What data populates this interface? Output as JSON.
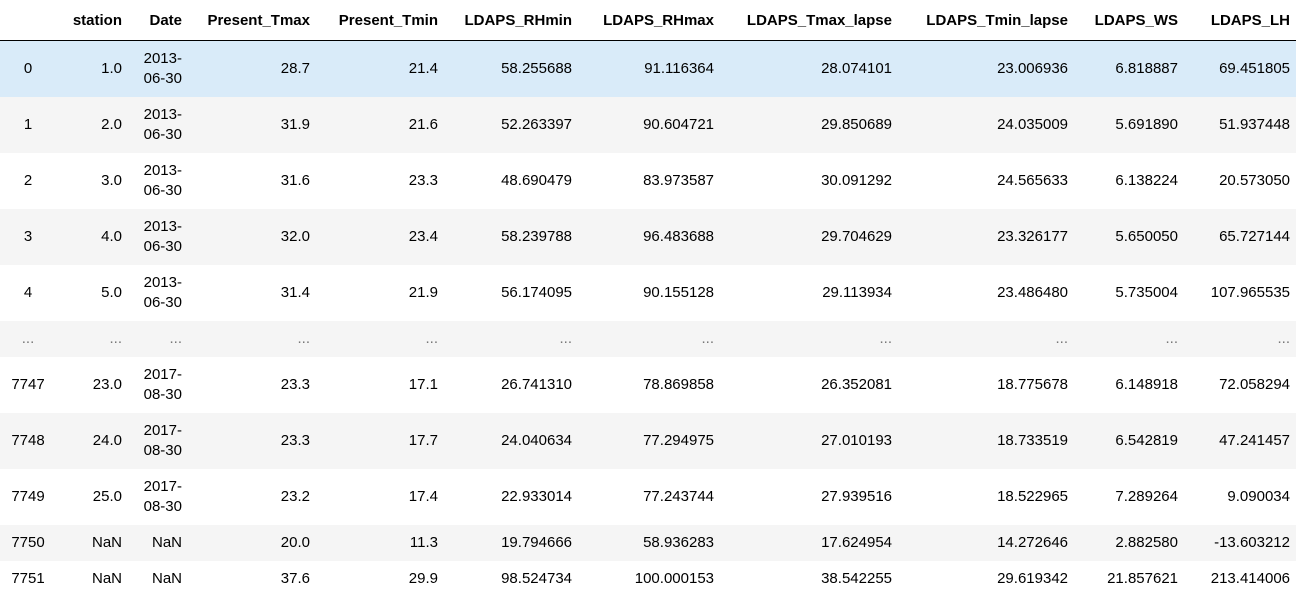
{
  "table": {
    "columns": [
      "station",
      "Date",
      "Present_Tmax",
      "Present_Tmin",
      "LDAPS_RHmin",
      "LDAPS_RHmax",
      "LDAPS_Tmax_lapse",
      "LDAPS_Tmin_lapse",
      "LDAPS_WS",
      "LDAPS_LH"
    ],
    "rows": [
      {
        "index": "0",
        "station": "1.0",
        "date1": "2013-",
        "date2": "06-30",
        "Present_Tmax": "28.7",
        "Present_Tmin": "21.4",
        "LDAPS_RHmin": "58.255688",
        "LDAPS_RHmax": "91.116364",
        "LDAPS_Tmax_lapse": "28.074101",
        "LDAPS_Tmin_lapse": "23.006936",
        "LDAPS_WS": "6.818887",
        "LDAPS_LH": "69.451805"
      },
      {
        "index": "1",
        "station": "2.0",
        "date1": "2013-",
        "date2": "06-30",
        "Present_Tmax": "31.9",
        "Present_Tmin": "21.6",
        "LDAPS_RHmin": "52.263397",
        "LDAPS_RHmax": "90.604721",
        "LDAPS_Tmax_lapse": "29.850689",
        "LDAPS_Tmin_lapse": "24.035009",
        "LDAPS_WS": "5.691890",
        "LDAPS_LH": "51.937448"
      },
      {
        "index": "2",
        "station": "3.0",
        "date1": "2013-",
        "date2": "06-30",
        "Present_Tmax": "31.6",
        "Present_Tmin": "23.3",
        "LDAPS_RHmin": "48.690479",
        "LDAPS_RHmax": "83.973587",
        "LDAPS_Tmax_lapse": "30.091292",
        "LDAPS_Tmin_lapse": "24.565633",
        "LDAPS_WS": "6.138224",
        "LDAPS_LH": "20.573050"
      },
      {
        "index": "3",
        "station": "4.0",
        "date1": "2013-",
        "date2": "06-30",
        "Present_Tmax": "32.0",
        "Present_Tmin": "23.4",
        "LDAPS_RHmin": "58.239788",
        "LDAPS_RHmax": "96.483688",
        "LDAPS_Tmax_lapse": "29.704629",
        "LDAPS_Tmin_lapse": "23.326177",
        "LDAPS_WS": "5.650050",
        "LDAPS_LH": "65.727144"
      },
      {
        "index": "4",
        "station": "5.0",
        "date1": "2013-",
        "date2": "06-30",
        "Present_Tmax": "31.4",
        "Present_Tmin": "21.9",
        "LDAPS_RHmin": "56.174095",
        "LDAPS_RHmax": "90.155128",
        "LDAPS_Tmax_lapse": "29.113934",
        "LDAPS_Tmin_lapse": "23.486480",
        "LDAPS_WS": "5.735004",
        "LDAPS_LH": "107.965535"
      },
      {
        "index": "...",
        "station": "...",
        "date1": "...",
        "date2": "",
        "Present_Tmax": "...",
        "Present_Tmin": "...",
        "LDAPS_RHmin": "...",
        "LDAPS_RHmax": "...",
        "LDAPS_Tmax_lapse": "...",
        "LDAPS_Tmin_lapse": "...",
        "LDAPS_WS": "...",
        "LDAPS_LH": "..."
      },
      {
        "index": "7747",
        "station": "23.0",
        "date1": "2017-",
        "date2": "08-30",
        "Present_Tmax": "23.3",
        "Present_Tmin": "17.1",
        "LDAPS_RHmin": "26.741310",
        "LDAPS_RHmax": "78.869858",
        "LDAPS_Tmax_lapse": "26.352081",
        "LDAPS_Tmin_lapse": "18.775678",
        "LDAPS_WS": "6.148918",
        "LDAPS_LH": "72.058294"
      },
      {
        "index": "7748",
        "station": "24.0",
        "date1": "2017-",
        "date2": "08-30",
        "Present_Tmax": "23.3",
        "Present_Tmin": "17.7",
        "LDAPS_RHmin": "24.040634",
        "LDAPS_RHmax": "77.294975",
        "LDAPS_Tmax_lapse": "27.010193",
        "LDAPS_Tmin_lapse": "18.733519",
        "LDAPS_WS": "6.542819",
        "LDAPS_LH": "47.241457"
      },
      {
        "index": "7749",
        "station": "25.0",
        "date1": "2017-",
        "date2": "08-30",
        "Present_Tmax": "23.2",
        "Present_Tmin": "17.4",
        "LDAPS_RHmin": "22.933014",
        "LDAPS_RHmax": "77.243744",
        "LDAPS_Tmax_lapse": "27.939516",
        "LDAPS_Tmin_lapse": "18.522965",
        "LDAPS_WS": "7.289264",
        "LDAPS_LH": "9.090034"
      },
      {
        "index": "7750",
        "station": "NaN",
        "date1": "NaN",
        "date2": "",
        "Present_Tmax": "20.0",
        "Present_Tmin": "11.3",
        "LDAPS_RHmin": "19.794666",
        "LDAPS_RHmax": "58.936283",
        "LDAPS_Tmax_lapse": "17.624954",
        "LDAPS_Tmin_lapse": "14.272646",
        "LDAPS_WS": "2.882580",
        "LDAPS_LH": "-13.603212"
      },
      {
        "index": "7751",
        "station": "NaN",
        "date1": "NaN",
        "date2": "",
        "Present_Tmax": "37.6",
        "Present_Tmin": "29.9",
        "LDAPS_RHmin": "98.524734",
        "LDAPS_RHmax": "100.000153",
        "LDAPS_Tmax_lapse": "38.542255",
        "LDAPS_Tmin_lapse": "29.619342",
        "LDAPS_WS": "21.857621",
        "LDAPS_LH": "213.414006"
      }
    ]
  },
  "colors": {
    "highlight_row": "#d9ebf9",
    "stripe_row": "#f5f5f5"
  }
}
